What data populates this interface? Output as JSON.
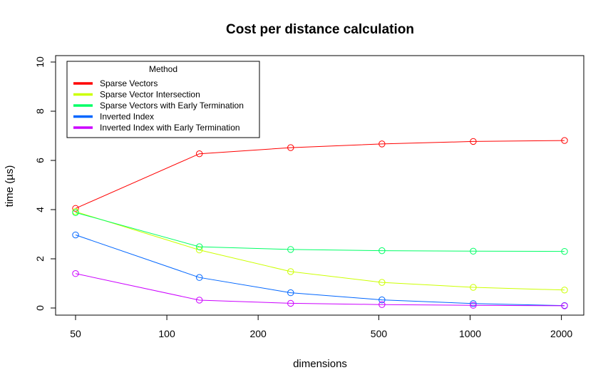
{
  "chart_data": {
    "type": "line",
    "title": "Cost per distance calculation",
    "xlabel": "dimensions",
    "ylabel": "time (µs)",
    "x_scale": "log",
    "x": [
      50,
      128,
      256,
      512,
      1024,
      2048
    ],
    "x_ticks": [
      50,
      100,
      200,
      500,
      1000,
      2000
    ],
    "ylim": [
      0,
      10
    ],
    "y_ticks": [
      0,
      2,
      4,
      6,
      8,
      10
    ],
    "grid": false,
    "legend": {
      "title": "Method",
      "position": "top-left"
    },
    "series": [
      {
        "name": "Sparse Vectors",
        "color": "#ff0000",
        "values": [
          4.05,
          6.27,
          6.52,
          6.67,
          6.77,
          6.81
        ]
      },
      {
        "name": "Sparse Vector Intersection",
        "color": "#ccff00",
        "values": [
          3.92,
          2.36,
          1.48,
          1.04,
          0.84,
          0.73
        ]
      },
      {
        "name": "Sparse Vectors with Early Termination",
        "color": "#00ff66",
        "values": [
          3.88,
          2.49,
          2.38,
          2.33,
          2.31,
          2.3
        ]
      },
      {
        "name": "Inverted Index",
        "color": "#0066ff",
        "values": [
          2.97,
          1.24,
          0.62,
          0.33,
          0.18,
          0.1
        ]
      },
      {
        "name": "Inverted Index with Early Termination",
        "color": "#cc00ff",
        "values": [
          1.4,
          0.32,
          0.19,
          0.14,
          0.11,
          0.09
        ]
      }
    ]
  }
}
